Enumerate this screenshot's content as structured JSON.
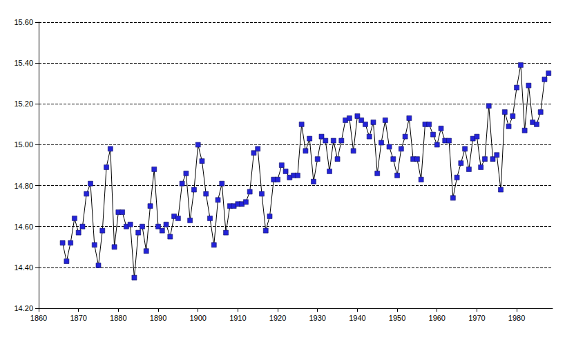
{
  "chart_data": {
    "type": "line",
    "marker": "square",
    "line_style": "solid",
    "color": "#2323d8",
    "grid": true,
    "x": [
      1866,
      1867,
      1868,
      1869,
      1870,
      1871,
      1872,
      1873,
      1874,
      1875,
      1876,
      1877,
      1878,
      1879,
      1880,
      1881,
      1882,
      1883,
      1884,
      1885,
      1886,
      1887,
      1888,
      1889,
      1890,
      1891,
      1892,
      1893,
      1894,
      1895,
      1896,
      1897,
      1898,
      1899,
      1900,
      1901,
      1902,
      1903,
      1904,
      1905,
      1906,
      1907,
      1908,
      1909,
      1910,
      1911,
      1912,
      1913,
      1914,
      1915,
      1916,
      1917,
      1918,
      1919,
      1920,
      1921,
      1922,
      1923,
      1924,
      1925,
      1926,
      1927,
      1928,
      1929,
      1930,
      1931,
      1932,
      1933,
      1934,
      1935,
      1936,
      1937,
      1938,
      1939,
      1940,
      1941,
      1942,
      1943,
      1944,
      1945,
      1946,
      1947,
      1948,
      1949,
      1950,
      1951,
      1952,
      1953,
      1954,
      1955,
      1956,
      1957,
      1958,
      1959,
      1960,
      1961,
      1962,
      1963,
      1964,
      1965,
      1966,
      1967,
      1968,
      1969,
      1970,
      1971,
      1972,
      1973,
      1974,
      1975,
      1976,
      1977,
      1978,
      1979,
      1980,
      1981,
      1982,
      1983,
      1984,
      1985,
      1986,
      1987,
      1988
    ],
    "values": [
      14.52,
      14.43,
      14.52,
      14.64,
      14.57,
      14.6,
      14.76,
      14.81,
      14.51,
      14.41,
      14.58,
      14.89,
      14.98,
      14.5,
      14.67,
      14.67,
      14.6,
      14.61,
      14.35,
      14.57,
      14.6,
      14.48,
      14.7,
      14.88,
      14.6,
      14.58,
      14.61,
      14.55,
      14.65,
      14.64,
      14.81,
      14.86,
      14.63,
      14.78,
      15.0,
      14.92,
      14.76,
      14.64,
      14.51,
      14.73,
      14.81,
      14.57,
      14.7,
      14.7,
      14.71,
      14.71,
      14.72,
      14.77,
      14.96,
      14.98,
      14.76,
      14.58,
      14.65,
      14.83,
      14.83,
      14.9,
      14.87,
      14.84,
      14.85,
      14.85,
      15.1,
      14.97,
      15.03,
      14.82,
      14.93,
      15.04,
      15.02,
      14.87,
      15.02,
      14.93,
      15.02,
      15.12,
      15.13,
      14.97,
      15.14,
      15.12,
      15.1,
      15.04,
      15.11,
      14.86,
      15.01,
      15.12,
      14.99,
      14.93,
      14.85,
      14.98,
      15.04,
      15.13,
      14.93,
      14.93,
      14.83,
      15.1,
      15.1,
      15.05,
      15.0,
      15.08,
      15.02,
      15.02,
      14.74,
      14.84,
      14.91,
      14.98,
      14.88,
      15.03,
      15.04,
      14.89,
      14.93,
      15.19,
      14.93,
      14.95,
      14.78,
      15.16,
      15.09,
      15.14,
      15.28,
      15.39,
      15.07,
      15.29,
      15.11,
      15.1,
      15.16,
      15.32,
      15.35
    ],
    "xlim": [
      1860,
      1989
    ],
    "xticks": [
      1860,
      1870,
      1880,
      1890,
      1900,
      1910,
      1920,
      1930,
      1940,
      1950,
      1960,
      1970,
      1980
    ],
    "ylim": [
      14.2,
      15.6
    ],
    "yticks": [
      {
        "value": 14.2,
        "label": "14.20"
      },
      {
        "value": 14.4,
        "label": "14.40"
      },
      {
        "value": 14.6,
        "label": "14.60"
      },
      {
        "value": 14.8,
        "label": "14.80"
      },
      {
        "value": 15.0,
        "label": "15.00"
      },
      {
        "value": 15.2,
        "label": "15.20"
      },
      {
        "value": 15.4,
        "label": "15.40"
      },
      {
        "value": 15.6,
        "label": "15.60"
      }
    ]
  }
}
